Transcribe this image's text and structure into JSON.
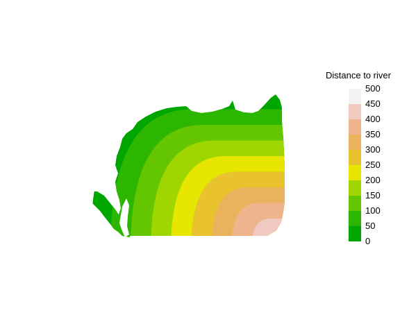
{
  "map": {
    "type": "raster-choropleth",
    "value_name": "Distance to river",
    "zones": [
      {
        "min": 0,
        "max": 50,
        "color": "#00A600"
      },
      {
        "min": 50,
        "max": 100,
        "color": "#2DB600"
      },
      {
        "min": 100,
        "max": 150,
        "color": "#63C600"
      },
      {
        "min": 150,
        "max": 200,
        "color": "#A0D600"
      },
      {
        "min": 200,
        "max": 250,
        "color": "#E6E600"
      },
      {
        "min": 250,
        "max": 300,
        "color": "#E8C32E"
      },
      {
        "min": 300,
        "max": 350,
        "color": "#EBB25E"
      },
      {
        "min": 350,
        "max": 400,
        "color": "#EDB48E"
      },
      {
        "min": 400,
        "max": 450,
        "color": "#F0C9C0"
      },
      {
        "min": 450,
        "max": 500,
        "color": "#F2F2F2"
      }
    ]
  },
  "legend": {
    "title": "Distance to river",
    "ticks": [
      "500",
      "450",
      "400",
      "350",
      "300",
      "250",
      "200",
      "150",
      "100",
      "50",
      "0"
    ]
  }
}
